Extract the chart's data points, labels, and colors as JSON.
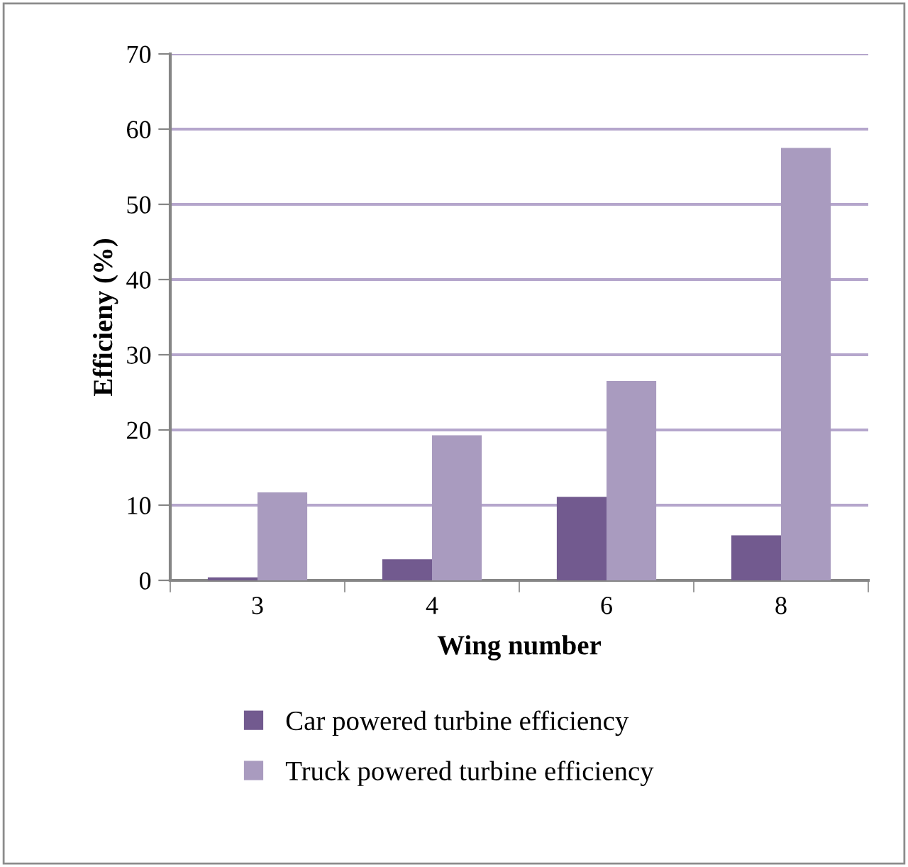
{
  "chart_data": {
    "type": "bar",
    "xlabel": "Wing number",
    "ylabel": "Efficieny (%)",
    "categories": [
      "3",
      "4",
      "6",
      "8"
    ],
    "series": [
      {
        "name": "Car powered turbine efficiency",
        "color": "#725a8f",
        "values": [
          0.4,
          2.8,
          11.1,
          6.0
        ]
      },
      {
        "name": "Truck powered turbine efficiency",
        "color": "#a99bbf",
        "values": [
          11.7,
          19.3,
          26.5,
          57.5
        ]
      }
    ],
    "ylim": [
      0,
      70
    ],
    "yticks": [
      0,
      10,
      20,
      30,
      40,
      50,
      60,
      70
    ],
    "grid": "y",
    "legend": "bottom"
  }
}
